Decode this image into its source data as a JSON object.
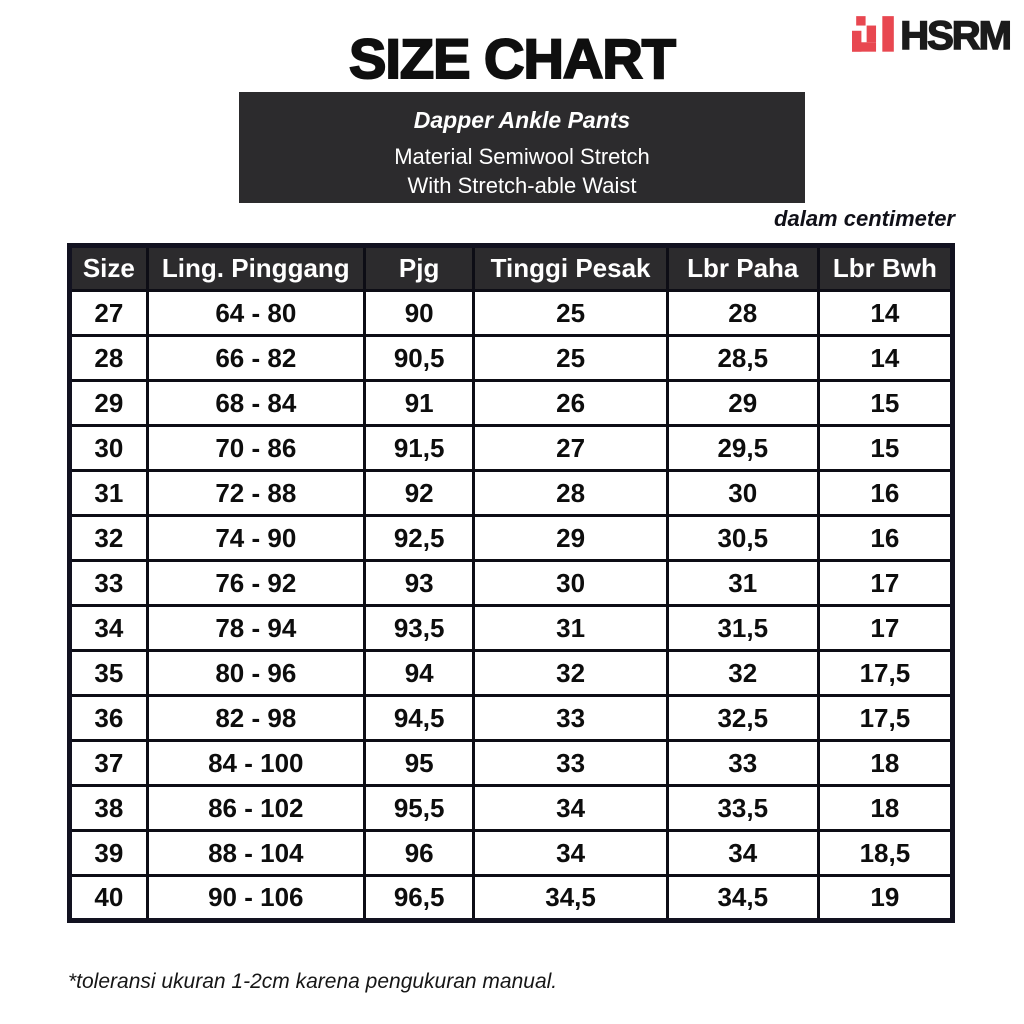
{
  "brand": {
    "name": "HSRM",
    "logo_icon": "pixel-steps-mark",
    "logo_color": "#e84750",
    "text_color": "#1b1b1b"
  },
  "title": "SIZE CHART",
  "product": {
    "name": "Dapper Ankle Pants",
    "material": "Material Semiwool Stretch",
    "waist": "With Stretch-able Waist"
  },
  "unit_note": "dalam centimeter",
  "chart_data": {
    "type": "table",
    "title": "SIZE CHART",
    "unit": "centimeter",
    "columns": [
      "Size",
      "Ling. Pinggang",
      "Pjg",
      "Tinggi Pesak",
      "Lbr Paha",
      "Lbr Bwh"
    ],
    "rows": [
      [
        "27",
        "64 - 80",
        "90",
        "25",
        "28",
        "14"
      ],
      [
        "28",
        "66 - 82",
        "90,5",
        "25",
        "28,5",
        "14"
      ],
      [
        "29",
        "68 - 84",
        "91",
        "26",
        "29",
        "15"
      ],
      [
        "30",
        "70 - 86",
        "91,5",
        "27",
        "29,5",
        "15"
      ],
      [
        "31",
        "72 - 88",
        "92",
        "28",
        "30",
        "16"
      ],
      [
        "32",
        "74 - 90",
        "92,5",
        "29",
        "30,5",
        "16"
      ],
      [
        "33",
        "76 - 92",
        "93",
        "30",
        "31",
        "17"
      ],
      [
        "34",
        "78 - 94",
        "93,5",
        "31",
        "31,5",
        "17"
      ],
      [
        "35",
        "80 - 96",
        "94",
        "32",
        "32",
        "17,5"
      ],
      [
        "36",
        "82 - 98",
        "94,5",
        "33",
        "32,5",
        "17,5"
      ],
      [
        "37",
        "84 - 100",
        "95",
        "33",
        "33",
        "18"
      ],
      [
        "38",
        "86 - 102",
        "95,5",
        "34",
        "33,5",
        "18"
      ],
      [
        "39",
        "88 - 104",
        "96",
        "34",
        "34",
        "18,5"
      ],
      [
        "40",
        "90 - 106",
        "96,5",
        "34,5",
        "34,5",
        "19"
      ]
    ]
  },
  "footnote": "*toleransi ukuran 1-2cm karena pengukuran manual.",
  "colors": {
    "dark_panel": "#2c2b2d",
    "table_border": "#0d0d15",
    "accent_red": "#e84750",
    "background": "#ffffff"
  }
}
